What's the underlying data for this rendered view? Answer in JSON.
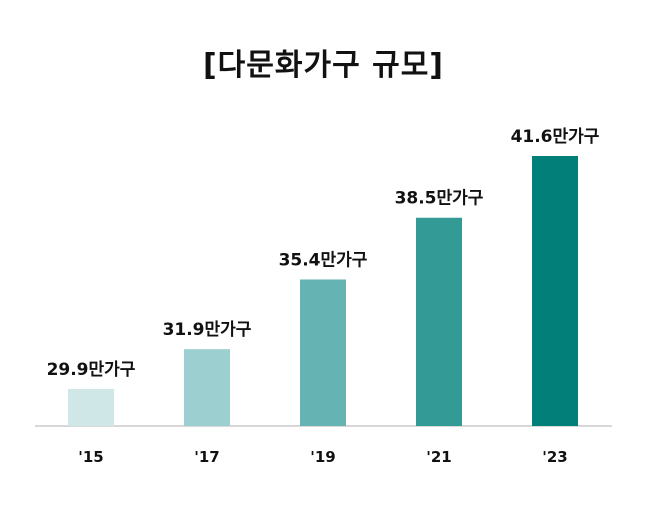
{
  "chart_data": {
    "type": "bar",
    "title": "[다문화가구 규모]",
    "xlabel": "",
    "ylabel": "",
    "categories": [
      "'15",
      "'17",
      "'19",
      "'21",
      "'23"
    ],
    "values": [
      29.9,
      31.9,
      35.4,
      38.5,
      41.6
    ],
    "data_labels": [
      "29.9만가구",
      "31.9만가구",
      "35.4만가구",
      "38.5만가구",
      "41.6만가구"
    ],
    "colors": [
      "#cfe7e7",
      "#9ccfcf",
      "#66b3b3",
      "#349a96",
      "#037f7a"
    ],
    "axis_color": "#cccccc",
    "grid": false,
    "legend": "none"
  }
}
